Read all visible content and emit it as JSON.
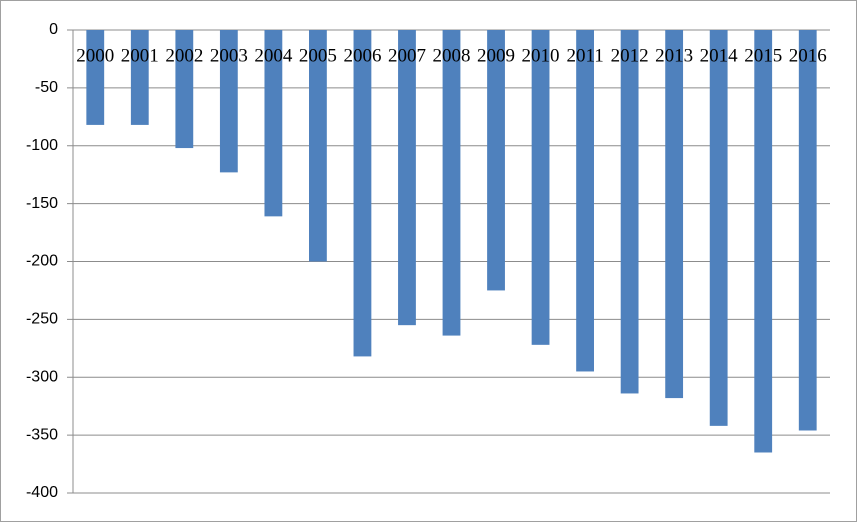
{
  "chart_data": {
    "type": "bar",
    "categories": [
      "2000",
      "2001",
      "2002",
      "2003",
      "2004",
      "2005",
      "2006",
      "2007",
      "2008",
      "2009",
      "2010",
      "2011",
      "2012",
      "2013",
      "2014",
      "2015",
      "2016"
    ],
    "values": [
      -82,
      -82,
      -102,
      -123,
      -161,
      -200,
      -282,
      -255,
      -264,
      -225,
      -272,
      -295,
      -314,
      -318,
      -342,
      -365,
      -346
    ],
    "color": "#4f81bd",
    "ylim": [
      -400,
      0
    ],
    "yticks": [
      0,
      -50,
      -100,
      -150,
      -200,
      -250,
      -300,
      -350,
      -400
    ],
    "grid": true
  }
}
